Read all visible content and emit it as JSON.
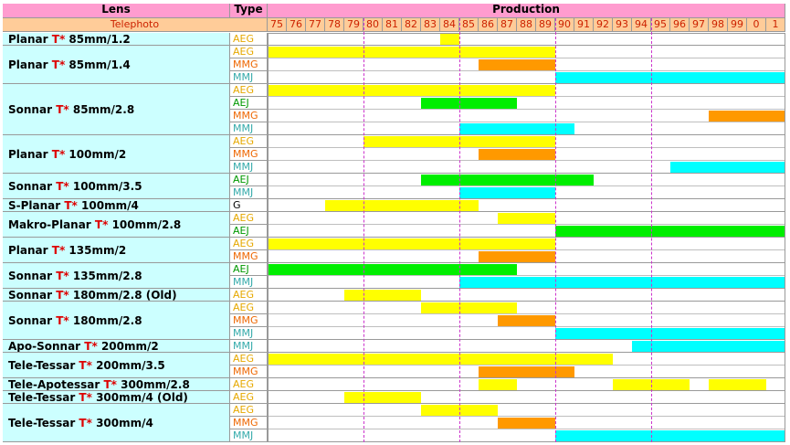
{
  "colors": {
    "header_bg": "#ff9ccf",
    "subheader_bg": "#ffcc99",
    "lens_bg": "#ccffff",
    "AEG": "#ffff00",
    "AEJ": "#00ee00",
    "MMG": "#ff9900",
    "MMJ": "#00ffff",
    "G": "#ffff00",
    "decade_line": "#cc33cc"
  },
  "chart_data": {
    "type": "table",
    "headers": {
      "lens": "Lens",
      "type": "Type",
      "production": "Production"
    },
    "section": "Telephoto",
    "years": [
      "75",
      "76",
      "77",
      "78",
      "79",
      "80",
      "81",
      "82",
      "83",
      "84",
      "85",
      "86",
      "87",
      "88",
      "89",
      "90",
      "91",
      "92",
      "93",
      "94",
      "95",
      "96",
      "97",
      "98",
      "99",
      "0",
      "1"
    ],
    "decade_markers": [
      "80",
      "85",
      "90",
      "95"
    ],
    "lenses": [
      {
        "name": "Planar",
        "tstar": "T*",
        "spec": "85mm/1.2",
        "types": [
          {
            "code": "AEG",
            "ranges": [
              [
                84,
                84
              ]
            ]
          }
        ]
      },
      {
        "name": "Planar",
        "tstar": "T*",
        "spec": "85mm/1.4",
        "types": [
          {
            "code": "AEG",
            "ranges": [
              [
                75,
                89
              ]
            ]
          },
          {
            "code": "MMG",
            "ranges": [
              [
                86,
                89
              ]
            ]
          },
          {
            "code": "MMJ",
            "ranges": [
              [
                90,
                101
              ]
            ]
          }
        ]
      },
      {
        "name": "Sonnar",
        "tstar": "T*",
        "spec": "85mm/2.8",
        "types": [
          {
            "code": "AEG",
            "ranges": [
              [
                75,
                89
              ]
            ]
          },
          {
            "code": "AEJ",
            "ranges": [
              [
                83,
                87
              ]
            ]
          },
          {
            "code": "MMG",
            "ranges": [
              [
                98,
                101
              ]
            ]
          },
          {
            "code": "MMJ",
            "ranges": [
              [
                85,
                90
              ]
            ]
          }
        ]
      },
      {
        "name": "Planar",
        "tstar": "T*",
        "spec": "100mm/2",
        "types": [
          {
            "code": "AEG",
            "ranges": [
              [
                80,
                89
              ]
            ]
          },
          {
            "code": "MMG",
            "ranges": [
              [
                86,
                89
              ]
            ]
          },
          {
            "code": "MMJ",
            "ranges": [
              [
                96,
                101
              ]
            ]
          }
        ]
      },
      {
        "name": "Sonnar",
        "tstar": "T*",
        "spec": "100mm/3.5",
        "types": [
          {
            "code": "AEJ",
            "ranges": [
              [
                83,
                91
              ]
            ]
          },
          {
            "code": "MMJ",
            "ranges": [
              [
                85,
                89
              ]
            ]
          }
        ]
      },
      {
        "name": "S-Planar",
        "tstar": "T*",
        "spec": "100mm/4",
        "types": [
          {
            "code": "G",
            "ranges": [
              [
                78,
                85
              ]
            ]
          }
        ]
      },
      {
        "name": "Makro-Planar",
        "tstar": "T*",
        "spec": "100mm/2.8",
        "types": [
          {
            "code": "AEG",
            "ranges": [
              [
                87,
                89
              ]
            ]
          },
          {
            "code": "AEJ",
            "ranges": [
              [
                90,
                101
              ]
            ]
          }
        ]
      },
      {
        "name": "Planar",
        "tstar": "T*",
        "spec": "135mm/2",
        "types": [
          {
            "code": "AEG",
            "ranges": [
              [
                75,
                89
              ]
            ]
          },
          {
            "code": "MMG",
            "ranges": [
              [
                86,
                89
              ]
            ]
          }
        ]
      },
      {
        "name": "Sonnar",
        "tstar": "T*",
        "spec": "135mm/2.8",
        "types": [
          {
            "code": "AEJ",
            "ranges": [
              [
                75,
                87
              ]
            ]
          },
          {
            "code": "MMJ",
            "ranges": [
              [
                85,
                101
              ]
            ]
          }
        ]
      },
      {
        "name": "Sonnar",
        "tstar": "T*",
        "spec": "180mm/2.8 (Old)",
        "types": [
          {
            "code": "AEG",
            "ranges": [
              [
                79,
                82
              ]
            ]
          }
        ]
      },
      {
        "name": "Sonnar",
        "tstar": "T*",
        "spec": "180mm/2.8",
        "types": [
          {
            "code": "AEG",
            "ranges": [
              [
                83,
                87
              ]
            ]
          },
          {
            "code": "MMG",
            "ranges": [
              [
                87,
                89
              ]
            ]
          },
          {
            "code": "MMJ",
            "ranges": [
              [
                90,
                101
              ]
            ]
          }
        ]
      },
      {
        "name": "Apo-Sonnar",
        "tstar": "T*",
        "spec": "200mm/2",
        "types": [
          {
            "code": "MMJ",
            "ranges": [
              [
                94,
                101
              ]
            ]
          }
        ]
      },
      {
        "name": "Tele-Tessar",
        "tstar": "T*",
        "spec": "200mm/3.5",
        "types": [
          {
            "code": "AEG",
            "ranges": [
              [
                75,
                92
              ]
            ]
          },
          {
            "code": "MMG",
            "ranges": [
              [
                86,
                90
              ]
            ]
          }
        ]
      },
      {
        "name": "Tele-Apotessar",
        "tstar": "T*",
        "spec": "300mm/2.8",
        "types": [
          {
            "code": "AEG",
            "ranges": [
              [
                86,
                87
              ],
              [
                93,
                96
              ],
              [
                98,
                100
              ]
            ]
          }
        ]
      },
      {
        "name": "Tele-Tessar",
        "tstar": "T*",
        "spec": "300mm/4 (Old)",
        "types": [
          {
            "code": "AEG",
            "ranges": [
              [
                79,
                82
              ]
            ]
          }
        ]
      },
      {
        "name": "Tele-Tessar",
        "tstar": "T*",
        "spec": "300mm/4",
        "types": [
          {
            "code": "AEG",
            "ranges": [
              [
                83,
                86
              ]
            ]
          },
          {
            "code": "MMG",
            "ranges": [
              [
                87,
                89
              ]
            ]
          },
          {
            "code": "MMJ",
            "ranges": [
              [
                90,
                101
              ]
            ]
          }
        ]
      }
    ]
  }
}
